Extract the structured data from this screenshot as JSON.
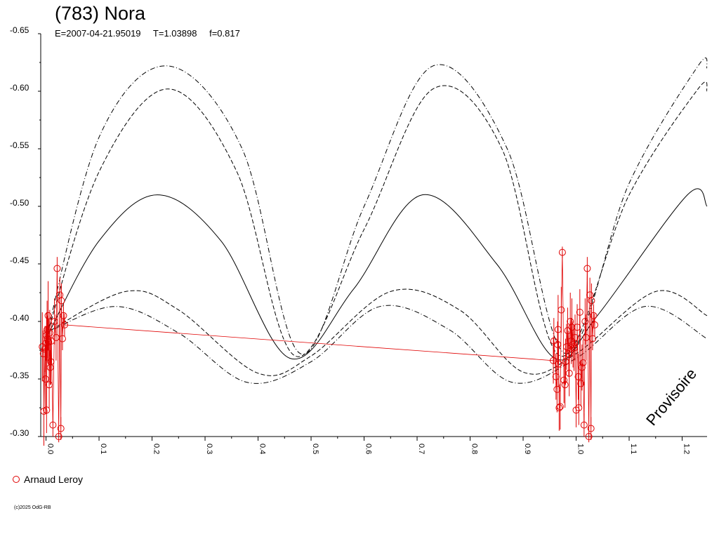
{
  "header": {
    "title": "(783) Nora",
    "epoch": "E=2007-04-21.95019",
    "period": "T=1.03898",
    "f": "f=0.817"
  },
  "stamp": "Provisoire",
  "copyright": "(c)2025 OdG-RB",
  "legend": [
    {
      "label": "Arnaud Leroy",
      "color": "#e00000",
      "marker": "circle"
    }
  ],
  "colors": {
    "data": "#e00000",
    "curves": "#000000"
  },
  "chart_data": {
    "type": "scatter",
    "x_ticks": [
      "0.0",
      "0.1",
      "0.2",
      "0.3",
      "0.4",
      "0.5",
      "0.6",
      "0.7",
      "0.8",
      "0.9",
      "1.0",
      "1.1",
      "1.2"
    ],
    "y_ticks": [
      "-0.65",
      "-0.60",
      "-0.55",
      "-0.50",
      "-0.45",
      "-0.40",
      "-0.35",
      "-0.30"
    ],
    "xlim": [
      -0.01,
      1.247
    ],
    "ylim": [
      -0.65,
      -0.3
    ],
    "y_inverted": true,
    "grid": false,
    "legend_position": "bottom-left",
    "series": [
      {
        "name": "Arnaud Leroy",
        "marker": "circle",
        "color": "#e00000",
        "error_bars": true,
        "points": [
          {
            "x": -0.007,
            "y": -0.378,
            "err": 0.03
          },
          {
            "x": -0.005,
            "y": -0.372,
            "err": 0.02
          },
          {
            "x": -0.004,
            "y": -0.322,
            "err": 0.03
          },
          {
            "x": -0.002,
            "y": -0.376,
            "err": 0.02
          },
          {
            "x": -0.001,
            "y": -0.35,
            "err": 0.03
          },
          {
            "x": 0.0,
            "y": -0.381,
            "err": 0.015
          },
          {
            "x": 0.001,
            "y": -0.388,
            "err": 0.02
          },
          {
            "x": 0.001,
            "y": -0.323,
            "err": 0.02
          },
          {
            "x": 0.002,
            "y": -0.393,
            "err": 0.025
          },
          {
            "x": 0.003,
            "y": -0.385,
            "err": 0.02
          },
          {
            "x": 0.004,
            "y": -0.405,
            "err": 0.03
          },
          {
            "x": 0.005,
            "y": -0.382,
            "err": 0.02
          },
          {
            "x": 0.006,
            "y": -0.345,
            "err": 0.02
          },
          {
            "x": 0.007,
            "y": -0.39,
            "err": 0.02
          },
          {
            "x": 0.008,
            "y": -0.36,
            "err": 0.015
          },
          {
            "x": 0.009,
            "y": -0.365,
            "err": 0.02
          },
          {
            "x": 0.01,
            "y": -0.383,
            "err": 0.02
          },
          {
            "x": 0.013,
            "y": -0.31,
            "err": 0.01
          },
          {
            "x": 0.016,
            "y": -0.4,
            "err": 0.02
          },
          {
            "x": 0.019,
            "y": -0.386,
            "err": 0.02
          },
          {
            "x": 0.021,
            "y": -0.446,
            "err": 0.01
          },
          {
            "x": 0.024,
            "y": -0.3,
            "err": 0.005
          },
          {
            "x": 0.026,
            "y": -0.423,
            "err": 0.015
          },
          {
            "x": 0.028,
            "y": -0.307,
            "err": 0.01
          },
          {
            "x": 0.029,
            "y": -0.418,
            "err": 0.015
          },
          {
            "x": 0.031,
            "y": -0.385,
            "err": 0.01
          },
          {
            "x": 0.033,
            "y": -0.405,
            "err": 0.01
          },
          {
            "x": 0.035,
            "y": -0.397,
            "err": 0.01
          },
          {
            "x": 0.957,
            "y": -0.366,
            "err": 0.02
          },
          {
            "x": 0.958,
            "y": -0.383,
            "err": 0.02
          },
          {
            "x": 0.962,
            "y": -0.352,
            "err": 0.02
          },
          {
            "x": 0.964,
            "y": -0.341,
            "err": 0.02
          },
          {
            "x": 0.965,
            "y": -0.38,
            "err": 0.02
          },
          {
            "x": 0.966,
            "y": -0.393,
            "err": 0.03
          },
          {
            "x": 0.967,
            "y": -0.363,
            "err": 0.02
          },
          {
            "x": 0.968,
            "y": -0.325,
            "err": 0.02
          },
          {
            "x": 0.97,
            "y": -0.326,
            "err": 0.02
          },
          {
            "x": 0.972,
            "y": -0.41,
            "err": 0.02
          },
          {
            "x": 0.974,
            "y": -0.46,
            "err": 0.005
          },
          {
            "x": 0.977,
            "y": -0.349,
            "err": 0.02
          },
          {
            "x": 0.979,
            "y": -0.345,
            "err": 0.02
          },
          {
            "x": 0.98,
            "y": -0.365,
            "err": 0.02
          },
          {
            "x": 0.982,
            "y": -0.378,
            "err": 0.02
          },
          {
            "x": 0.984,
            "y": -0.392,
            "err": 0.02
          },
          {
            "x": 0.986,
            "y": -0.372,
            "err": 0.02
          },
          {
            "x": 0.987,
            "y": -0.355,
            "err": 0.02
          },
          {
            "x": 0.989,
            "y": -0.4,
            "err": 0.025
          },
          {
            "x": 0.991,
            "y": -0.383,
            "err": 0.02
          },
          {
            "x": 0.992,
            "y": -0.395,
            "err": 0.025
          },
          {
            "x": 0.994,
            "y": -0.38,
            "err": 0.02
          },
          {
            "x": 0.996,
            "y": -0.377,
            "err": 0.02
          },
          {
            "x": 0.998,
            "y": -0.386,
            "err": 0.02
          },
          {
            "x": 1.0,
            "y": -0.323,
            "err": 0.015
          },
          {
            "x": 1.002,
            "y": -0.395,
            "err": 0.02
          },
          {
            "x": 1.004,
            "y": -0.352,
            "err": 0.02
          },
          {
            "x": 1.005,
            "y": -0.325,
            "err": 0.015
          },
          {
            "x": 1.007,
            "y": -0.408,
            "err": 0.02
          },
          {
            "x": 1.009,
            "y": -0.346,
            "err": 0.02
          },
          {
            "x": 1.011,
            "y": -0.36,
            "err": 0.02
          },
          {
            "x": 1.013,
            "y": -0.364,
            "err": 0.02
          },
          {
            "x": 1.015,
            "y": -0.31,
            "err": 0.01
          },
          {
            "x": 1.017,
            "y": -0.4,
            "err": 0.02
          },
          {
            "x": 1.019,
            "y": -0.386,
            "err": 0.02
          },
          {
            "x": 1.021,
            "y": -0.446,
            "err": 0.01
          },
          {
            "x": 1.024,
            "y": -0.3,
            "err": 0.005
          },
          {
            "x": 1.026,
            "y": -0.423,
            "err": 0.015
          },
          {
            "x": 1.028,
            "y": -0.307,
            "err": 0.01
          },
          {
            "x": 1.029,
            "y": -0.418,
            "err": 0.015
          },
          {
            "x": 1.031,
            "y": -0.385,
            "err": 0.01
          },
          {
            "x": 1.033,
            "y": -0.405,
            "err": 0.01
          },
          {
            "x": 1.035,
            "y": -0.397,
            "err": 0.01
          }
        ]
      }
    ],
    "fit_curves": [
      {
        "style": "solid",
        "points": [
          [
            0,
            -0.385
          ],
          [
            0.1,
            -0.47
          ],
          [
            0.21,
            -0.51
          ],
          [
            0.33,
            -0.47
          ],
          [
            0.46,
            -0.368
          ],
          [
            0.58,
            -0.428
          ],
          [
            0.71,
            -0.51
          ],
          [
            0.85,
            -0.45
          ],
          [
            0.96,
            -0.368
          ],
          [
            1.04,
            -0.405
          ],
          [
            1.21,
            -0.51
          ],
          [
            1.247,
            -0.5
          ]
        ]
      },
      {
        "style": "dashed",
        "points": [
          [
            0,
            -0.385
          ],
          [
            0.1,
            -0.53
          ],
          [
            0.23,
            -0.602
          ],
          [
            0.36,
            -0.53
          ],
          [
            0.47,
            -0.37
          ],
          [
            0.6,
            -0.48
          ],
          [
            0.73,
            -0.602
          ],
          [
            0.86,
            -0.55
          ],
          [
            0.97,
            -0.37
          ],
          [
            1.1,
            -0.51
          ],
          [
            1.23,
            -0.602
          ],
          [
            1.247,
            -0.6
          ]
        ]
      },
      {
        "style": "dashdot",
        "points": [
          [
            0,
            -0.385
          ],
          [
            0.1,
            -0.56
          ],
          [
            0.23,
            -0.622
          ],
          [
            0.37,
            -0.55
          ],
          [
            0.48,
            -0.372
          ],
          [
            0.6,
            -0.5
          ],
          [
            0.73,
            -0.622
          ],
          [
            0.87,
            -0.55
          ],
          [
            0.98,
            -0.372
          ],
          [
            1.1,
            -0.52
          ],
          [
            1.23,
            -0.622
          ],
          [
            1.247,
            -0.62
          ]
        ]
      },
      {
        "style": "dashed",
        "points": [
          [
            0,
            -0.39
          ],
          [
            0.15,
            -0.426
          ],
          [
            0.25,
            -0.41
          ],
          [
            0.4,
            -0.355
          ],
          [
            0.5,
            -0.37
          ],
          [
            0.65,
            -0.426
          ],
          [
            0.78,
            -0.41
          ],
          [
            0.9,
            -0.356
          ],
          [
            1.0,
            -0.372
          ],
          [
            1.15,
            -0.426
          ],
          [
            1.247,
            -0.405
          ]
        ]
      },
      {
        "style": "dashdot",
        "points": [
          [
            0,
            -0.39
          ],
          [
            0.13,
            -0.413
          ],
          [
            0.25,
            -0.39
          ],
          [
            0.38,
            -0.347
          ],
          [
            0.5,
            -0.365
          ],
          [
            0.63,
            -0.413
          ],
          [
            0.76,
            -0.393
          ],
          [
            0.88,
            -0.347
          ],
          [
            1.0,
            -0.368
          ],
          [
            1.13,
            -0.413
          ],
          [
            1.247,
            -0.385
          ]
        ]
      }
    ]
  }
}
